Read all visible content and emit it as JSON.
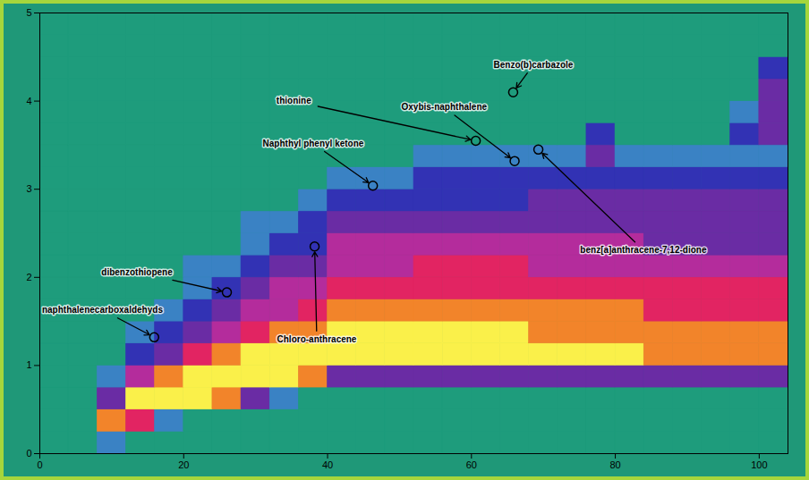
{
  "chart_data": {
    "type": "heatmap",
    "xlim": [
      0,
      104
    ],
    "xticks": [
      0,
      20,
      40,
      60,
      80,
      100
    ],
    "ylim": [
      0,
      5
    ],
    "yticks": [
      0,
      1,
      2,
      3,
      4,
      5
    ],
    "xbins": [
      0,
      4,
      8,
      12,
      16,
      20,
      24,
      28,
      32,
      36,
      40,
      44,
      48,
      52,
      56,
      60,
      64,
      68,
      72,
      76,
      80,
      84,
      88,
      92,
      96,
      100,
      104
    ],
    "ybins": [
      0,
      0.25,
      0.5,
      0.75,
      1,
      1.25,
      1.5,
      1.75,
      2,
      2.25,
      2.5,
      2.75,
      3,
      3.25,
      3.5,
      3.75,
      4,
      4.25,
      4.5,
      4.75,
      5
    ],
    "zlim": [
      0,
      7
    ],
    "z": [
      [
        0,
        0,
        1,
        0,
        0,
        0,
        0,
        0,
        0,
        0,
        0,
        0,
        0,
        0,
        0,
        0,
        0,
        0,
        0,
        0,
        0,
        0,
        0,
        0,
        0,
        0
      ],
      [
        0,
        0,
        6,
        5,
        1,
        0,
        0,
        0,
        0,
        0,
        0,
        0,
        0,
        0,
        0,
        0,
        0,
        0,
        0,
        0,
        0,
        0,
        0,
        0,
        0,
        0
      ],
      [
        0,
        0,
        3,
        7,
        7,
        7,
        6,
        3,
        1,
        0,
        0,
        0,
        0,
        0,
        0,
        0,
        0,
        0,
        0,
        0,
        0,
        0,
        0,
        0,
        0,
        0
      ],
      [
        0,
        0,
        1,
        4,
        6,
        7,
        7,
        7,
        7,
        6,
        3,
        3,
        3,
        3,
        3,
        3,
        3,
        3,
        3,
        3,
        3,
        3,
        3,
        3,
        3,
        3
      ],
      [
        0,
        0,
        0,
        2,
        3,
        5,
        6,
        7,
        7,
        7,
        7,
        7,
        7,
        7,
        7,
        7,
        7,
        7,
        7,
        7,
        7,
        6,
        6,
        6,
        6,
        6
      ],
      [
        0,
        0,
        0,
        1,
        2,
        3,
        4,
        5,
        6,
        6,
        7,
        7,
        7,
        7,
        7,
        7,
        7,
        6,
        6,
        6,
        6,
        6,
        6,
        6,
        6,
        6
      ],
      [
        0,
        0,
        0,
        0,
        1,
        2,
        3,
        4,
        4,
        5,
        6,
        6,
        6,
        6,
        6,
        6,
        6,
        6,
        6,
        6,
        6,
        5,
        5,
        5,
        5,
        5
      ],
      [
        0,
        0,
        0,
        0,
        0,
        1,
        2,
        3,
        4,
        4,
        5,
        5,
        5,
        5,
        5,
        5,
        5,
        5,
        5,
        5,
        5,
        5,
        5,
        5,
        5,
        5
      ],
      [
        0,
        0,
        0,
        0,
        0,
        1,
        1,
        2,
        3,
        3,
        4,
        4,
        4,
        5,
        5,
        5,
        5,
        4,
        4,
        4,
        4,
        4,
        4,
        4,
        4,
        4
      ],
      [
        0,
        0,
        0,
        0,
        0,
        0,
        0,
        1,
        2,
        2,
        4,
        4,
        4,
        4,
        4,
        4,
        4,
        4,
        4,
        4,
        4,
        3,
        3,
        3,
        3,
        3
      ],
      [
        0,
        0,
        0,
        0,
        0,
        0,
        0,
        1,
        1,
        2,
        3,
        3,
        3,
        3,
        3,
        3,
        3,
        3,
        3,
        3,
        3,
        3,
        3,
        3,
        3,
        3
      ],
      [
        0,
        0,
        0,
        0,
        0,
        0,
        0,
        0,
        0,
        1,
        2,
        2,
        2,
        2,
        2,
        2,
        2,
        3,
        3,
        3,
        3,
        3,
        3,
        3,
        3,
        3
      ],
      [
        0,
        0,
        0,
        0,
        0,
        0,
        0,
        0,
        0,
        0,
        1,
        1,
        1,
        2,
        2,
        2,
        2,
        2,
        2,
        2,
        2,
        2,
        2,
        2,
        2,
        2
      ],
      [
        0,
        0,
        0,
        0,
        0,
        0,
        0,
        0,
        0,
        0,
        0,
        0,
        0,
        1,
        1,
        1,
        1,
        1,
        1,
        3,
        1,
        1,
        1,
        1,
        1,
        1
      ],
      [
        0,
        0,
        0,
        0,
        0,
        0,
        0,
        0,
        0,
        0,
        0,
        0,
        0,
        0,
        0,
        0,
        0,
        0,
        0,
        2,
        0,
        0,
        0,
        0,
        2,
        3
      ],
      [
        0,
        0,
        0,
        0,
        0,
        0,
        0,
        0,
        0,
        0,
        0,
        0,
        0,
        0,
        0,
        0,
        0,
        0,
        0,
        0,
        0,
        0,
        0,
        0,
        1,
        3
      ],
      [
        0,
        0,
        0,
        0,
        0,
        0,
        0,
        0,
        0,
        0,
        0,
        0,
        0,
        0,
        0,
        0,
        0,
        0,
        0,
        0,
        0,
        0,
        0,
        0,
        0,
        3
      ],
      [
        0,
        0,
        0,
        0,
        0,
        0,
        0,
        0,
        0,
        0,
        0,
        0,
        0,
        0,
        0,
        0,
        0,
        0,
        0,
        0,
        0,
        0,
        0,
        0,
        0,
        2
      ],
      [
        0,
        0,
        0,
        0,
        0,
        0,
        0,
        0,
        0,
        0,
        0,
        0,
        0,
        0,
        0,
        0,
        0,
        0,
        0,
        0,
        0,
        0,
        0,
        0,
        0,
        0
      ],
      [
        0,
        0,
        0,
        0,
        0,
        0,
        0,
        0,
        0,
        0,
        0,
        0,
        0,
        0,
        0,
        0,
        0,
        0,
        0,
        0,
        0,
        0,
        0,
        0,
        0,
        0
      ]
    ],
    "annotations": [
      {
        "text": "naphthalenecarboxaldehyds",
        "label_x": 8.7,
        "label_y": 1.63,
        "x": 15.9,
        "y": 1.32
      },
      {
        "text": "dibenzothiopene",
        "label_x": 13.5,
        "label_y": 2.06,
        "x": 26,
        "y": 1.83
      },
      {
        "text": "Naphthyl phenyl ketone",
        "label_x": 38,
        "label_y": 3.52,
        "x": 46.3,
        "y": 3.04
      },
      {
        "text": "thionine",
        "label_x": 35.3,
        "label_y": 4.0,
        "x": 60.6,
        "y": 3.55
      },
      {
        "text": "Oxybis-naphthalene",
        "label_x": 56.2,
        "label_y": 3.93,
        "x": 66,
        "y": 3.32
      },
      {
        "text": "Benzo(b)carbazole",
        "label_x": 68.6,
        "label_y": 4.41,
        "x": 65.8,
        "y": 4.1
      },
      {
        "text": "benz[a]anthracene-7,12-dione",
        "label_x": 83.9,
        "label_y": 2.31,
        "x": 69.3,
        "y": 3.45
      },
      {
        "text": "Chloro-anthracene",
        "label_x": 38.5,
        "label_y": 1.3,
        "x": 38.2,
        "y": 2.35
      }
    ]
  }
}
